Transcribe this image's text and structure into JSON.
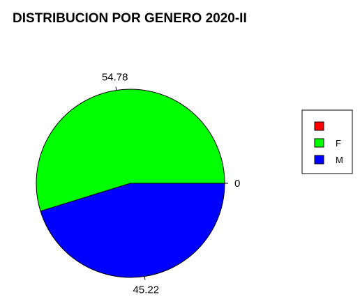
{
  "chart_data": {
    "type": "pie",
    "title": "DISTRIBUCION POR GENERO 2020-II",
    "categories": [
      "",
      "F",
      "M"
    ],
    "values": [
      0,
      54.78,
      45.22
    ],
    "labels": [
      "0",
      "54.78",
      "45.22"
    ],
    "colors": [
      "#ff0000",
      "#00ff00",
      "#0000ff"
    ],
    "legend": {
      "position": "right",
      "entries": [
        {
          "label": "",
          "color": "#ff0000"
        },
        {
          "label": "F",
          "color": "#00ff00"
        },
        {
          "label": "M",
          "color": "#0000ff"
        }
      ]
    }
  }
}
